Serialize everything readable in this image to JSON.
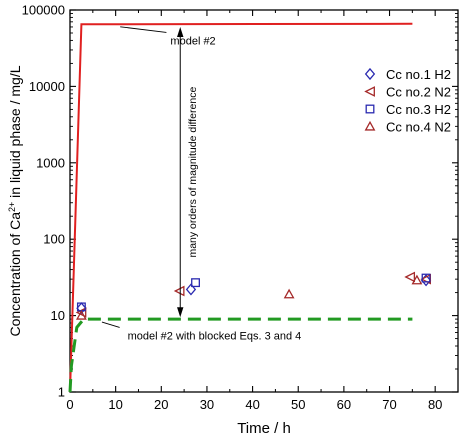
{
  "chart_data": {
    "type": "scatter",
    "title": "",
    "xlabel": "Time / h",
    "ylabel_parts": {
      "before": "Concentration of Ca",
      "sup": "2+",
      "after": " in liquid phase / mg/L"
    },
    "xlim": [
      0,
      85
    ],
    "ylim": [
      1,
      100000
    ],
    "yscale": "log",
    "x_ticks": [
      0,
      10,
      20,
      30,
      40,
      50,
      60,
      70,
      80
    ],
    "x_tick_labels": [
      "0",
      "10",
      "20",
      "30",
      "40",
      "50",
      "60",
      "70",
      "80"
    ],
    "y_ticks": [
      1,
      10,
      100,
      1000,
      10000,
      100000
    ],
    "y_tick_labels": [
      "1",
      "10",
      "100",
      "1000",
      "10000",
      "100000"
    ],
    "legend_position": "upper-right",
    "lines": [
      {
        "name": "model #2",
        "color": "#e02020",
        "dash": "solid",
        "x": [
          0,
          2.5,
          75
        ],
        "y": [
          1,
          65000,
          66000
        ]
      },
      {
        "name": "model #2 with blocked Eqs. 3 and 4",
        "color": "#229a22",
        "dash": "dashed",
        "x": [
          0,
          0.3,
          1.5,
          3,
          75
        ],
        "y": [
          1,
          2.2,
          7,
          9,
          9
        ]
      }
    ],
    "series": [
      {
        "name": "Cc no.1 H2",
        "marker": "diamond",
        "color": "#2a2ab0",
        "x": [
          2.5,
          26.5,
          78
        ],
        "y": [
          12.5,
          22,
          29
        ]
      },
      {
        "name": "Cc no.2 N2",
        "marker": "triangle-left",
        "color": "#a52a2a",
        "x": [
          2.5,
          24,
          74.5,
          78
        ],
        "y": [
          11,
          21,
          32,
          30
        ]
      },
      {
        "name": "Cc no.3 H2",
        "marker": "square",
        "color": "#2a2ab0",
        "x": [
          2.5,
          27.5,
          78
        ],
        "y": [
          13,
          27,
          31
        ]
      },
      {
        "name": "Cc no.4 N2",
        "marker": "triangle-up",
        "color": "#a52a2a",
        "x": [
          2.5,
          48,
          76
        ],
        "y": [
          10,
          19,
          29
        ]
      }
    ],
    "annotations": [
      {
        "text": "model #2",
        "target_x": 11,
        "target_y": 66000,
        "text_x": 22,
        "text_y": 40000
      },
      {
        "text": "model #2 with blocked Eqs. 3 and 4",
        "target_x": 7,
        "target_y": 9,
        "text_x": 10,
        "text_y": 5.5
      },
      {
        "text": "many orders of magnitude difference",
        "x": 7.5,
        "y_from": 9.5,
        "y_to": 60000
      }
    ]
  }
}
